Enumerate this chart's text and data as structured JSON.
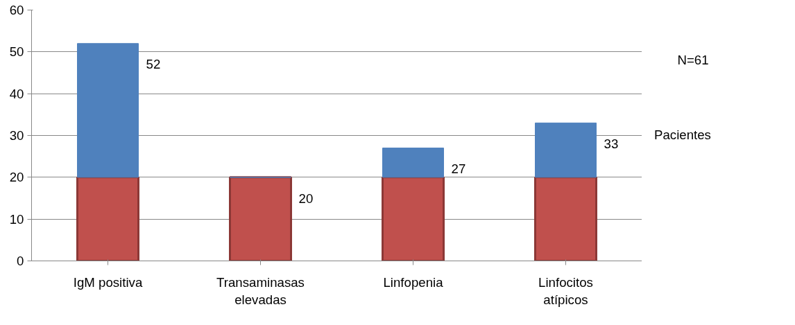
{
  "chart_data": {
    "type": "bar",
    "stacked": true,
    "categories": [
      "IgM positiva",
      "Transaminasas elevadas",
      "Linfopenia",
      "Linfocitos atípicos"
    ],
    "series": [
      {
        "color": "#c0504d",
        "values": [
          20,
          20,
          20,
          20
        ]
      },
      {
        "name": "Pacientes",
        "color": "#4f81bd",
        "values": [
          32,
          0,
          7,
          13
        ]
      }
    ],
    "totals": [
      "52",
      "20",
      "27",
      "33"
    ],
    "ylim": [
      0,
      60
    ],
    "yticks": [
      0,
      10,
      20,
      30,
      40,
      50,
      60
    ],
    "grid": "y",
    "legend": "right",
    "annotations": [
      "N=61"
    ]
  }
}
